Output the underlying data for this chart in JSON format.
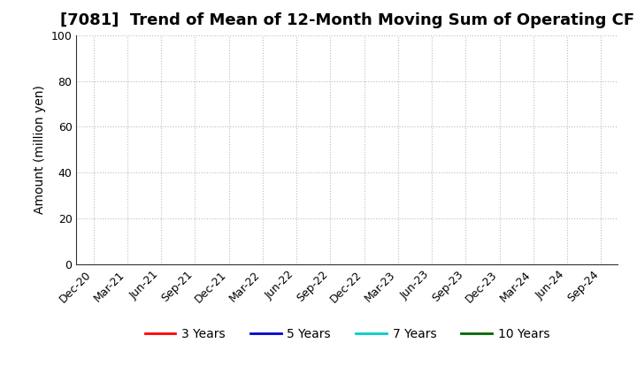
{
  "title": "[7081]  Trend of Mean of 12-Month Moving Sum of Operating CF",
  "ylabel": "Amount (million yen)",
  "ylim": [
    0,
    100
  ],
  "yticks": [
    0,
    20,
    40,
    60,
    80,
    100
  ],
  "x_labels": [
    "Dec-20",
    "Mar-21",
    "Jun-21",
    "Sep-21",
    "Dec-21",
    "Mar-22",
    "Jun-22",
    "Sep-22",
    "Dec-22",
    "Mar-23",
    "Jun-23",
    "Sep-23",
    "Dec-23",
    "Mar-24",
    "Jun-24",
    "Sep-24"
  ],
  "background_color": "#ffffff",
  "plot_bg_color": "#ffffff",
  "grid_color": "#bbbbbb",
  "legend_entries": [
    {
      "label": "3 Years",
      "color": "#ff0000",
      "linewidth": 2.0
    },
    {
      "label": "5 Years",
      "color": "#0000cc",
      "linewidth": 2.0
    },
    {
      "label": "7 Years",
      "color": "#00cccc",
      "linewidth": 2.0
    },
    {
      "label": "10 Years",
      "color": "#006600",
      "linewidth": 2.0
    }
  ],
  "title_fontsize": 13,
  "axis_label_fontsize": 10,
  "tick_fontsize": 9,
  "legend_fontsize": 10
}
